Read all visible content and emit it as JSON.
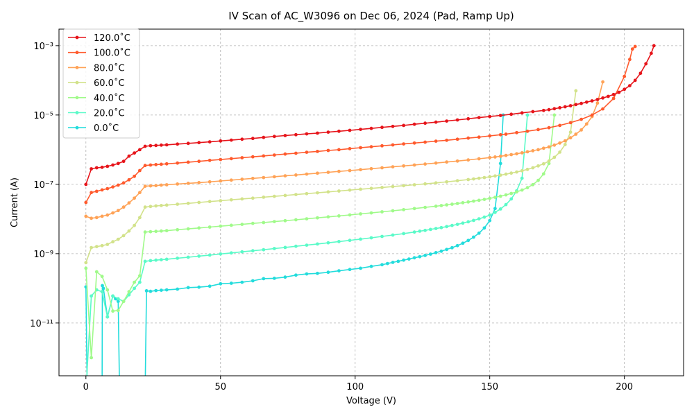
{
  "chart_data": {
    "type": "line",
    "title": "IV Scan of AC_W3096 on Dec 06, 2024 (Pad, Ramp Up)",
    "xlabel": "Voltage (V)",
    "ylabel": "Current (A)",
    "xlim": [
      -10,
      222
    ],
    "ylim": [
      3e-13,
      0.003
    ],
    "yscale": "log",
    "xticks": [
      0,
      50,
      100,
      150,
      200
    ],
    "xtick_labels": [
      "0",
      "50",
      "100",
      "150",
      "200"
    ],
    "yticks": [
      1e-11,
      1e-09,
      1e-07,
      1e-05,
      0.001
    ],
    "ytick_labels": [
      "10⁻¹¹",
      "10⁻⁹",
      "10⁻⁷",
      "10⁻⁵",
      "10⁻³"
    ],
    "grid": true,
    "legend_position": "top-left",
    "series": [
      {
        "name": "120.0˚C",
        "color": "#e6141a",
        "x": [
          0,
          2,
          4,
          6,
          8,
          10,
          12,
          14,
          16,
          18,
          20,
          22,
          24,
          26,
          28,
          30,
          34,
          38,
          42,
          46,
          50,
          54,
          58,
          62,
          66,
          70,
          74,
          78,
          82,
          86,
          90,
          94,
          98,
          102,
          106,
          110,
          114,
          118,
          122,
          126,
          130,
          134,
          138,
          142,
          146,
          150,
          154,
          158,
          162,
          166,
          170,
          172,
          174,
          176,
          178,
          180,
          182,
          184,
          186,
          188,
          190,
          192,
          194,
          196,
          198,
          200,
          202,
          204,
          206,
          208,
          210,
          211
        ],
        "y": [
          1e-07,
          2.8e-07,
          3e-07,
          3.1e-07,
          3.3e-07,
          3.6e-07,
          4e-07,
          4.6e-07,
          6.5e-07,
          8e-07,
          1e-06,
          1.25e-06,
          1.3e-06,
          1.32e-06,
          1.35e-06,
          1.38e-06,
          1.45e-06,
          1.52e-06,
          1.6e-06,
          1.68e-06,
          1.78e-06,
          1.88e-06,
          2e-06,
          2.1e-06,
          2.25e-06,
          2.4e-06,
          2.55e-06,
          2.7e-06,
          2.85e-06,
          3e-06,
          3.2e-06,
          3.4e-06,
          3.6e-06,
          3.85e-06,
          4.1e-06,
          4.4e-06,
          4.7e-06,
          5e-06,
          5.4e-06,
          5.8e-06,
          6.2e-06,
          6.7e-06,
          7.2e-06,
          7.8e-06,
          8.4e-06,
          9e-06,
          9.7e-06,
          1.05e-05,
          1.15e-05,
          1.25e-05,
          1.35e-05,
          1.42e-05,
          1.52e-05,
          1.62e-05,
          1.73e-05,
          1.85e-05,
          2e-05,
          2.15e-05,
          2.35e-05,
          2.55e-05,
          2.8e-05,
          3.1e-05,
          3.45e-05,
          3.9e-05,
          4.5e-05,
          5.5e-05,
          7e-05,
          0.0001,
          0.00016,
          0.0003,
          0.0006,
          0.001
        ]
      },
      {
        "name": "100.0˚C",
        "color": "#ff5a2d",
        "x": [
          0,
          2,
          4,
          6,
          8,
          10,
          12,
          14,
          16,
          18,
          20,
          22,
          24,
          26,
          28,
          30,
          34,
          38,
          42,
          46,
          50,
          54,
          58,
          62,
          66,
          70,
          74,
          78,
          82,
          86,
          90,
          94,
          98,
          102,
          106,
          110,
          114,
          118,
          122,
          126,
          130,
          134,
          138,
          142,
          146,
          150,
          154,
          156,
          160,
          164,
          168,
          172,
          176,
          180,
          184,
          188,
          192,
          196,
          200,
          202,
          203,
          204
        ],
        "y": [
          3e-08,
          5.8e-08,
          6.3e-08,
          6.9e-08,
          7.5e-08,
          8.4e-08,
          9.5e-08,
          1.1e-07,
          1.35e-07,
          1.7e-07,
          2.5e-07,
          3.5e-07,
          3.6e-07,
          3.7e-07,
          3.8e-07,
          3.9e-07,
          4.1e-07,
          4.35e-07,
          4.6e-07,
          4.9e-07,
          5.2e-07,
          5.5e-07,
          5.85e-07,
          6.2e-07,
          6.6e-07,
          7e-07,
          7.45e-07,
          7.9e-07,
          8.4e-07,
          8.9e-07,
          9.5e-07,
          1e-06,
          1.07e-06,
          1.14e-06,
          1.21e-06,
          1.29e-06,
          1.37e-06,
          1.46e-06,
          1.55e-06,
          1.65e-06,
          1.76e-06,
          1.87e-06,
          2e-06,
          2.15e-06,
          2.3e-06,
          2.5e-06,
          2.7e-06,
          2.8e-06,
          3.1e-06,
          3.4e-06,
          3.8e-06,
          4.3e-06,
          5e-06,
          6e-06,
          7.5e-06,
          1e-05,
          1.5e-05,
          3e-05,
          0.00013,
          0.0004,
          0.0008,
          0.00095
        ]
      },
      {
        "name": "80.0˚C",
        "color": "#ffa256",
        "x": [
          0,
          2,
          4,
          6,
          8,
          10,
          12,
          14,
          16,
          18,
          20,
          22,
          24,
          26,
          28,
          30,
          34,
          38,
          42,
          46,
          50,
          54,
          58,
          62,
          66,
          70,
          74,
          78,
          82,
          86,
          90,
          94,
          98,
          102,
          106,
          110,
          114,
          118,
          122,
          126,
          130,
          134,
          138,
          142,
          146,
          150,
          152,
          154,
          156,
          158,
          160,
          162,
          164,
          166,
          168,
          170,
          172,
          174,
          176,
          178,
          180,
          182,
          184,
          186,
          188,
          190,
          192
        ],
        "y": [
          1.2e-08,
          1.05e-08,
          1.1e-08,
          1.2e-08,
          1.3e-08,
          1.5e-08,
          1.75e-08,
          2.2e-08,
          2.9e-08,
          4e-08,
          5.8e-08,
          8.8e-08,
          9e-08,
          9.2e-08,
          9.5e-08,
          9.7e-08,
          1.02e-07,
          1.07e-07,
          1.12e-07,
          1.18e-07,
          1.25e-07,
          1.32e-07,
          1.4e-07,
          1.48e-07,
          1.57e-07,
          1.66e-07,
          1.76e-07,
          1.86e-07,
          1.97e-07,
          2.09e-07,
          2.22e-07,
          2.36e-07,
          2.5e-07,
          2.65e-07,
          2.82e-07,
          3e-07,
          3.2e-07,
          3.4e-07,
          3.6e-07,
          3.85e-07,
          4.1e-07,
          4.4e-07,
          4.7e-07,
          5.05e-07,
          5.45e-07,
          5.9e-07,
          6.15e-07,
          6.45e-07,
          6.8e-07,
          7.2e-07,
          7.6e-07,
          8.1e-07,
          8.7e-07,
          9.3e-07,
          1e-06,
          1.1e-06,
          1.2e-06,
          1.35e-06,
          1.55e-06,
          1.8e-06,
          2.2e-06,
          2.8e-06,
          3.7e-06,
          5.5e-06,
          9e-06,
          2.2e-05,
          9e-05
        ]
      },
      {
        "name": "60.0˚C",
        "color": "#d2e28a",
        "x": [
          0,
          2,
          4,
          6,
          8,
          10,
          12,
          14,
          16,
          18,
          20,
          22,
          24,
          26,
          28,
          30,
          34,
          38,
          42,
          46,
          50,
          54,
          58,
          62,
          66,
          70,
          74,
          78,
          82,
          86,
          90,
          94,
          98,
          102,
          106,
          110,
          114,
          118,
          122,
          126,
          130,
          134,
          138,
          142,
          144,
          146,
          148,
          150,
          152,
          154,
          156,
          158,
          160,
          162,
          164,
          166,
          168,
          170,
          172,
          174,
          176,
          178,
          180,
          182
        ],
        "y": [
          5.5e-10,
          1.5e-09,
          1.6e-09,
          1.7e-09,
          1.85e-09,
          2.2e-09,
          2.6e-09,
          3.3e-09,
          4.5e-09,
          6.5e-09,
          1.1e-08,
          2.2e-08,
          2.3e-08,
          2.38e-08,
          2.45e-08,
          2.52e-08,
          2.67e-08,
          2.83e-08,
          3e-08,
          3.18e-08,
          3.37e-08,
          3.57e-08,
          3.79e-08,
          4e-08,
          4.25e-08,
          4.5e-08,
          4.78e-08,
          5.07e-08,
          5.38e-08,
          5.7e-08,
          6.05e-08,
          6.42e-08,
          6.8e-08,
          7.22e-08,
          7.65e-08,
          8.12e-08,
          8.6e-08,
          9.15e-08,
          9.7e-08,
          1.03e-07,
          1.1e-07,
          1.18e-07,
          1.27e-07,
          1.37e-07,
          1.43e-07,
          1.5e-07,
          1.57e-07,
          1.65e-07,
          1.74e-07,
          1.84e-07,
          1.96e-07,
          2.1e-07,
          2.27e-07,
          2.46e-07,
          2.7e-07,
          3e-07,
          3.4e-07,
          3.9e-07,
          4.7e-07,
          6e-07,
          8.5e-07,
          1.4e-06,
          3.2e-06,
          5e-05
        ]
      },
      {
        "name": "40.0˚C",
        "color": "#a0fa8a",
        "x": [
          0,
          2,
          4,
          6,
          8,
          10,
          12,
          14,
          16,
          18,
          20,
          22,
          24,
          26,
          28,
          30,
          34,
          38,
          42,
          46,
          50,
          54,
          58,
          62,
          66,
          70,
          74,
          78,
          82,
          86,
          90,
          94,
          98,
          102,
          106,
          110,
          114,
          118,
          122,
          126,
          130,
          132,
          134,
          136,
          138,
          140,
          142,
          144,
          146,
          148,
          150,
          152,
          154,
          156,
          158,
          160,
          162,
          164,
          166,
          168,
          170,
          172,
          174
        ],
        "y": [
          3.8e-10,
          1e-12,
          3e-10,
          2.2e-10,
          9e-11,
          2.2e-11,
          2.3e-11,
          4.2e-11,
          8e-11,
          1.5e-10,
          2.3e-10,
          4.2e-09,
          4.3e-09,
          4.4e-09,
          4.5e-09,
          4.6e-09,
          4.9e-09,
          5.2e-09,
          5.5e-09,
          5.85e-09,
          6.2e-09,
          6.6e-09,
          7e-09,
          7.45e-09,
          7.9e-09,
          8.4e-09,
          8.95e-09,
          9.5e-09,
          1.01e-08,
          1.08e-08,
          1.15e-08,
          1.23e-08,
          1.31e-08,
          1.4e-08,
          1.5e-08,
          1.61e-08,
          1.73e-08,
          1.86e-08,
          2e-08,
          2.16e-08,
          2.34e-08,
          2.44e-08,
          2.55e-08,
          2.67e-08,
          2.8e-08,
          2.94e-08,
          3.1e-08,
          3.27e-08,
          3.46e-08,
          3.68e-08,
          3.93e-08,
          4.22e-08,
          4.55e-08,
          4.95e-08,
          5.45e-08,
          6.05e-08,
          6.85e-08,
          8e-08,
          9.8e-08,
          1.3e-07,
          2e-07,
          4e-07,
          1e-05
        ]
      },
      {
        "name": "20.0˚C",
        "color": "#5afac8",
        "x": [
          0,
          2,
          4,
          6,
          8,
          10,
          12,
          14,
          16,
          18,
          20,
          22,
          24,
          26,
          28,
          30,
          34,
          38,
          42,
          46,
          50,
          54,
          58,
          62,
          66,
          70,
          74,
          78,
          82,
          86,
          90,
          94,
          98,
          102,
          106,
          110,
          114,
          118,
          122,
          124,
          126,
          128,
          130,
          132,
          134,
          136,
          138,
          140,
          142,
          144,
          146,
          148,
          150,
          152,
          154,
          156,
          158,
          160,
          162,
          164
        ],
        "y": [
          1e-13,
          6e-11,
          9e-11,
          8e-11,
          1.5e-11,
          6e-11,
          5e-11,
          4.2e-11,
          6.5e-11,
          1e-10,
          1.5e-10,
          6e-10,
          6.3e-10,
          6.5e-10,
          6.7e-10,
          6.9e-10,
          7.4e-10,
          7.9e-10,
          8.5e-10,
          9.1e-10,
          9.8e-10,
          1.05e-09,
          1.13e-09,
          1.21e-09,
          1.3e-09,
          1.4e-09,
          1.51e-09,
          1.63e-09,
          1.76e-09,
          1.9e-09,
          2.06e-09,
          2.23e-09,
          2.42e-09,
          2.63e-09,
          2.87e-09,
          3.14e-09,
          3.45e-09,
          3.8e-09,
          4.2e-09,
          4.45e-09,
          4.7e-09,
          5e-09,
          5.3e-09,
          5.65e-09,
          6.05e-09,
          6.5e-09,
          7e-09,
          7.6e-09,
          8.3e-09,
          9.1e-09,
          1.01e-08,
          1.13e-08,
          1.3e-08,
          1.55e-08,
          1.95e-08,
          2.6e-08,
          3.8e-08,
          6.5e-08,
          1.5e-07,
          1e-05
        ]
      },
      {
        "name": "0.0˚C",
        "color": "#23dcdc",
        "x": [
          0,
          0.5,
          6,
          6.1,
          6.5,
          8,
          10,
          11,
          12,
          12.5,
          22,
          22.5,
          24,
          26,
          28,
          30,
          34,
          38,
          42,
          46,
          50,
          54,
          58,
          62,
          66,
          70,
          74,
          78,
          82,
          86,
          90,
          94,
          98,
          102,
          106,
          110,
          112,
          114,
          116,
          118,
          120,
          122,
          124,
          126,
          128,
          130,
          132,
          134,
          136,
          138,
          140,
          142,
          144,
          146,
          148,
          150,
          152,
          154,
          155
        ],
        "y": [
          1.1e-10,
          1e-13,
          1e-13,
          1.2e-10,
          1e-10,
          1.5e-11,
          6e-11,
          5e-11,
          4.2e-11,
          1e-13,
          1e-13,
          8.5e-11,
          8.2e-11,
          8.6e-11,
          8.8e-11,
          9e-11,
          9.5e-11,
          1.05e-10,
          1.08e-10,
          1.15e-10,
          1.35e-10,
          1.4e-10,
          1.5e-10,
          1.65e-10,
          1.9e-10,
          1.95e-10,
          2.1e-10,
          2.4e-10,
          2.6e-10,
          2.7e-10,
          2.9e-10,
          3.2e-10,
          3.5e-10,
          3.8e-10,
          4.3e-10,
          4.8e-10,
          5.2e-10,
          5.6e-10,
          6e-10,
          6.5e-10,
          7e-10,
          7.6e-10,
          8.2e-10,
          8.9e-10,
          9.7e-10,
          1.07e-09,
          1.18e-09,
          1.32e-09,
          1.48e-09,
          1.7e-09,
          2e-09,
          2.4e-09,
          3e-09,
          3.9e-09,
          5.5e-09,
          9e-09,
          2e-08,
          4e-07,
          1e-05
        ]
      }
    ]
  }
}
